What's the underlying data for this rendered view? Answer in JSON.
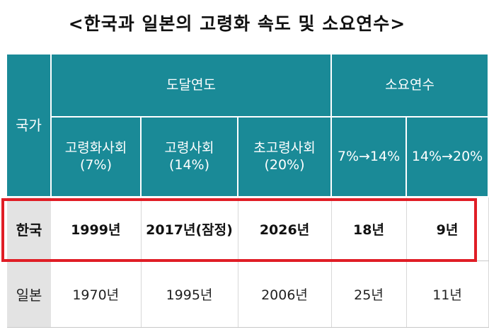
{
  "title": "<한국과 일본의 고령화 속도 및 소요연수>",
  "header": {
    "country": "국가",
    "group_reach": "도달연도",
    "group_years": "소요연수",
    "col_aging": "고령화사회",
    "col_aging_pct": "(7%)",
    "col_aged": "고령사회",
    "col_aged_pct": "(14%)",
    "col_super": "초고령사회",
    "col_super_pct": "(20%)",
    "col_7_14": "7%→14%",
    "col_14_20": "14%→20%"
  },
  "rows": [
    {
      "country": "한국",
      "aging": "1999년",
      "aged": "2017년(잠정)",
      "super": "2026년",
      "y7_14": "18년",
      "y14_20": "9년"
    },
    {
      "country": "일본",
      "aging": "1970년",
      "aged": "1995년",
      "super": "2006년",
      "y7_14": "25년",
      "y14_20": "11년"
    }
  ],
  "colors": {
    "header_bg": "#1a8a97",
    "highlight_border": "#e01e26",
    "row_label_bg": "#e3e3e3"
  }
}
